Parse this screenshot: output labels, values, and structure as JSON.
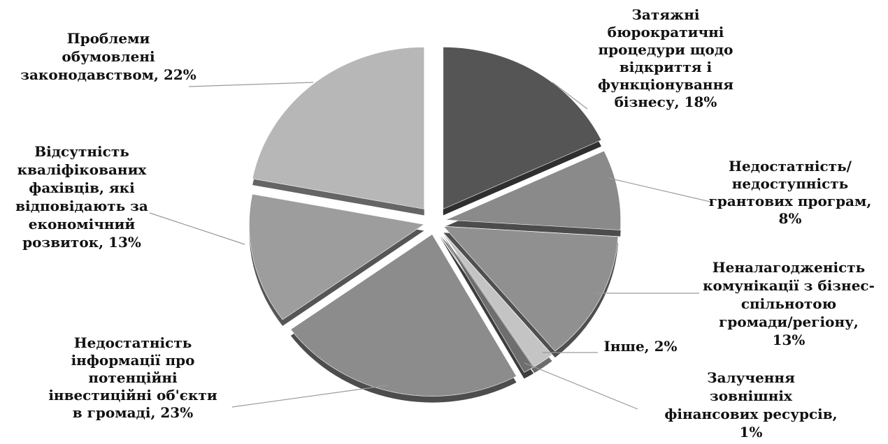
{
  "chart_data": {
    "type": "pie",
    "title": "",
    "legend": "none",
    "slices": [
      {
        "label_lines": [
          "Затяжні",
          "бюрократичні",
          "процедури щодо",
          "відкриття і",
          "функціонування",
          "бізнесу, 18%"
        ],
        "value": 18,
        "color": "#555555"
      },
      {
        "label_lines": [
          "Недостатність/",
          "недоступність",
          "грантових програм,",
          "8%"
        ],
        "value": 8,
        "color": "#8a8a8a"
      },
      {
        "label_lines": [
          "Неналагодженість",
          "комунікації з бізнес-",
          "спільнотою",
          "громади/регіону,",
          "13%"
        ],
        "value": 13,
        "color": "#909090"
      },
      {
        "label_lines": [
          "Інше, 2%"
        ],
        "value": 2,
        "color": "#c4c4c4"
      },
      {
        "label_lines": [
          "Залучення",
          "зовнішніх",
          "фінансових ресурсів,",
          "1%"
        ],
        "value": 1,
        "color": "#6e6e6e"
      },
      {
        "label_lines": [
          "Недостатність",
          "інформації про",
          "потенційні",
          "інвестиційні об'єкти",
          "в громаді, 23%"
        ],
        "value": 23,
        "color": "#8c8c8c"
      },
      {
        "label_lines": [
          "Відсутність",
          "кваліфікованих",
          "фахівців, які",
          "відповідають за",
          "економічний",
          "розвиток, 13%"
        ],
        "value": 13,
        "color": "#9d9d9d"
      },
      {
        "label_lines": [
          "Проблеми",
          "обумовлені",
          "законодавством, 22%"
        ],
        "value": 22,
        "color": "#b7b7b7"
      }
    ]
  }
}
